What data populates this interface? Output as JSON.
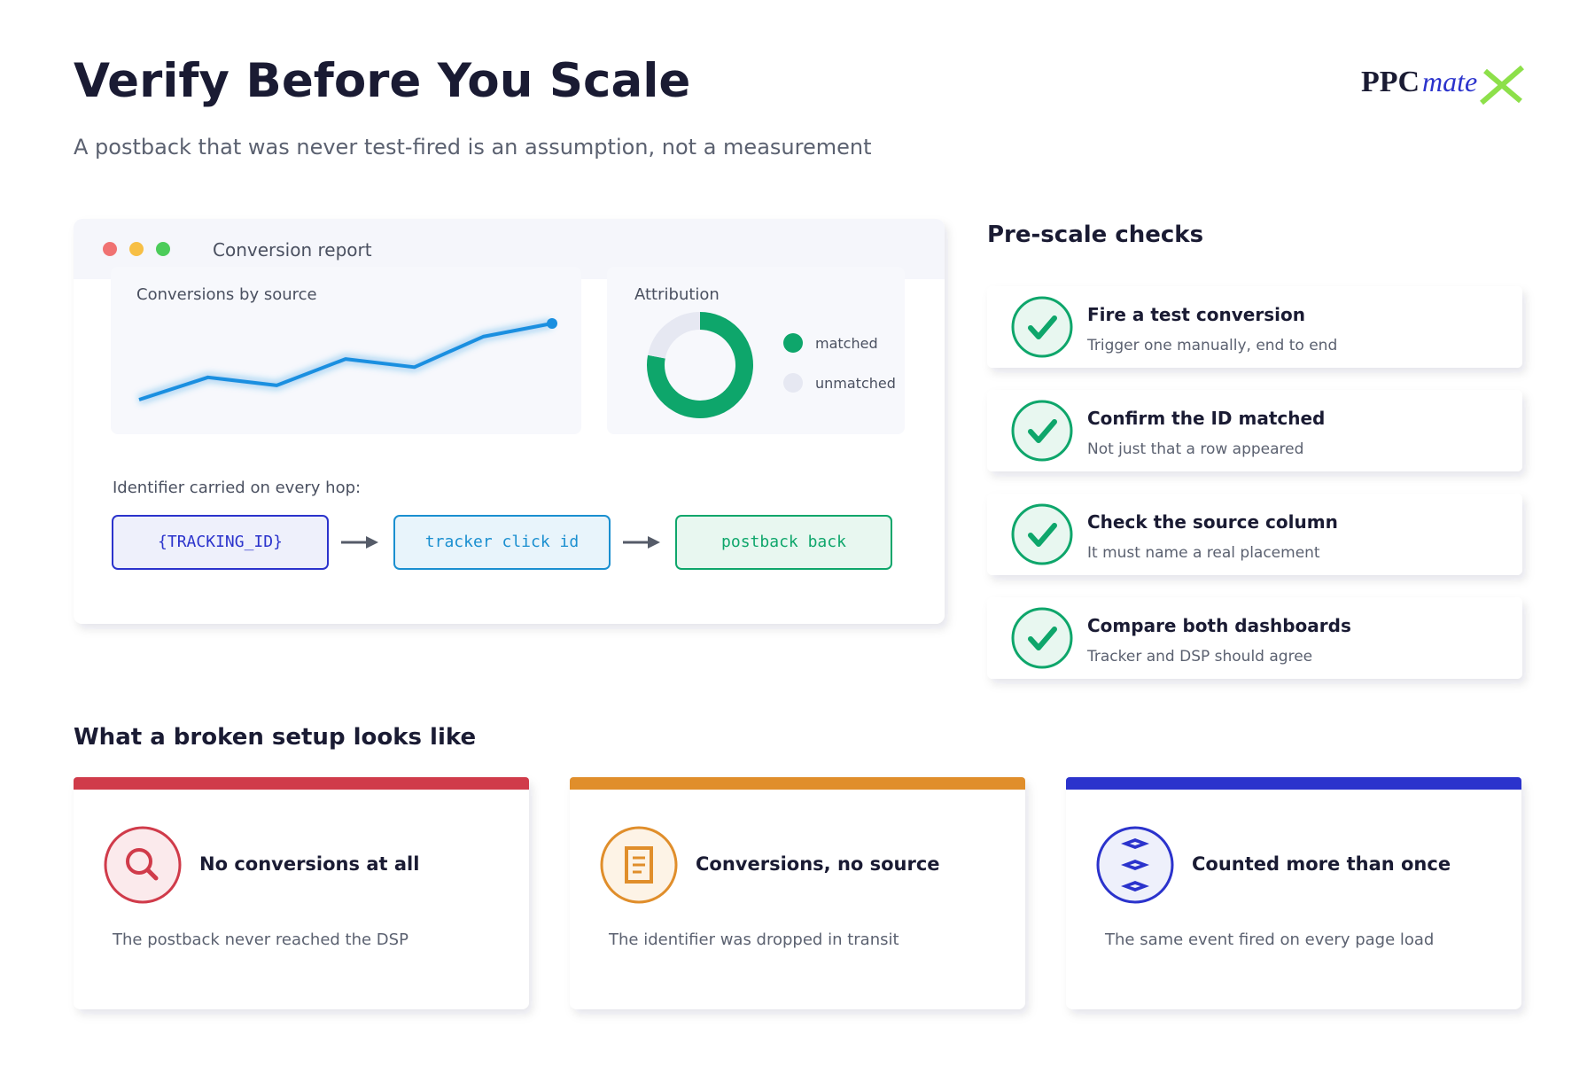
{
  "header": {
    "title": "Verify Before You Scale",
    "subtitle": "A postback that was never test-fired is an assumption, not a measurement",
    "logo": {
      "main": "PPC",
      "accent": "mate"
    }
  },
  "report": {
    "window_title": "Conversion report",
    "line_panel": {
      "title": "Conversions by source",
      "values": [
        10,
        32,
        24,
        50,
        42,
        72,
        85
      ],
      "color": "#1a8fe0"
    },
    "donut_panel": {
      "title": "Attribution",
      "segments": [
        {
          "name": "matched",
          "value": 78,
          "color": "#0ea66b"
        },
        {
          "name": "unmatched",
          "value": 22,
          "color": "#e6e8f2"
        }
      ]
    },
    "hop_label": "Identifier carried on every hop:",
    "hops": [
      {
        "label": "{TRACKING_ID}",
        "color": "#2b33cc",
        "fill": "#eef0fb"
      },
      {
        "label": "tracker click id",
        "color": "#1a8fd0",
        "fill": "#e8f4fb"
      },
      {
        "label": "postback back",
        "color": "#0ea66b",
        "fill": "#e8f7f0"
      }
    ]
  },
  "checks": {
    "title": "Pre-scale checks",
    "items": [
      {
        "title": "Fire a test conversion",
        "subtitle": "Trigger one manually, end to end"
      },
      {
        "title": "Confirm the ID matched",
        "subtitle": "Not just that a row appeared"
      },
      {
        "title": "Check the source column",
        "subtitle": "It must name a real placement"
      },
      {
        "title": "Compare both dashboards",
        "subtitle": "Tracker and DSP should agree"
      }
    ]
  },
  "broken": {
    "title": "What a broken setup looks like",
    "cards": [
      {
        "title": "No conversions at all",
        "description": "The postback never reached the DSP",
        "color": "#d03b4a",
        "tint": "#fbeaec"
      },
      {
        "title": "Conversions, no source",
        "description": "The identifier was dropped in transit",
        "color": "#e08e2b",
        "tint": "#fdf3e6"
      },
      {
        "title": "Counted more than once",
        "description": "The same event fired on every page load",
        "color": "#2b33cc",
        "tint": "#eef0fb"
      }
    ]
  }
}
